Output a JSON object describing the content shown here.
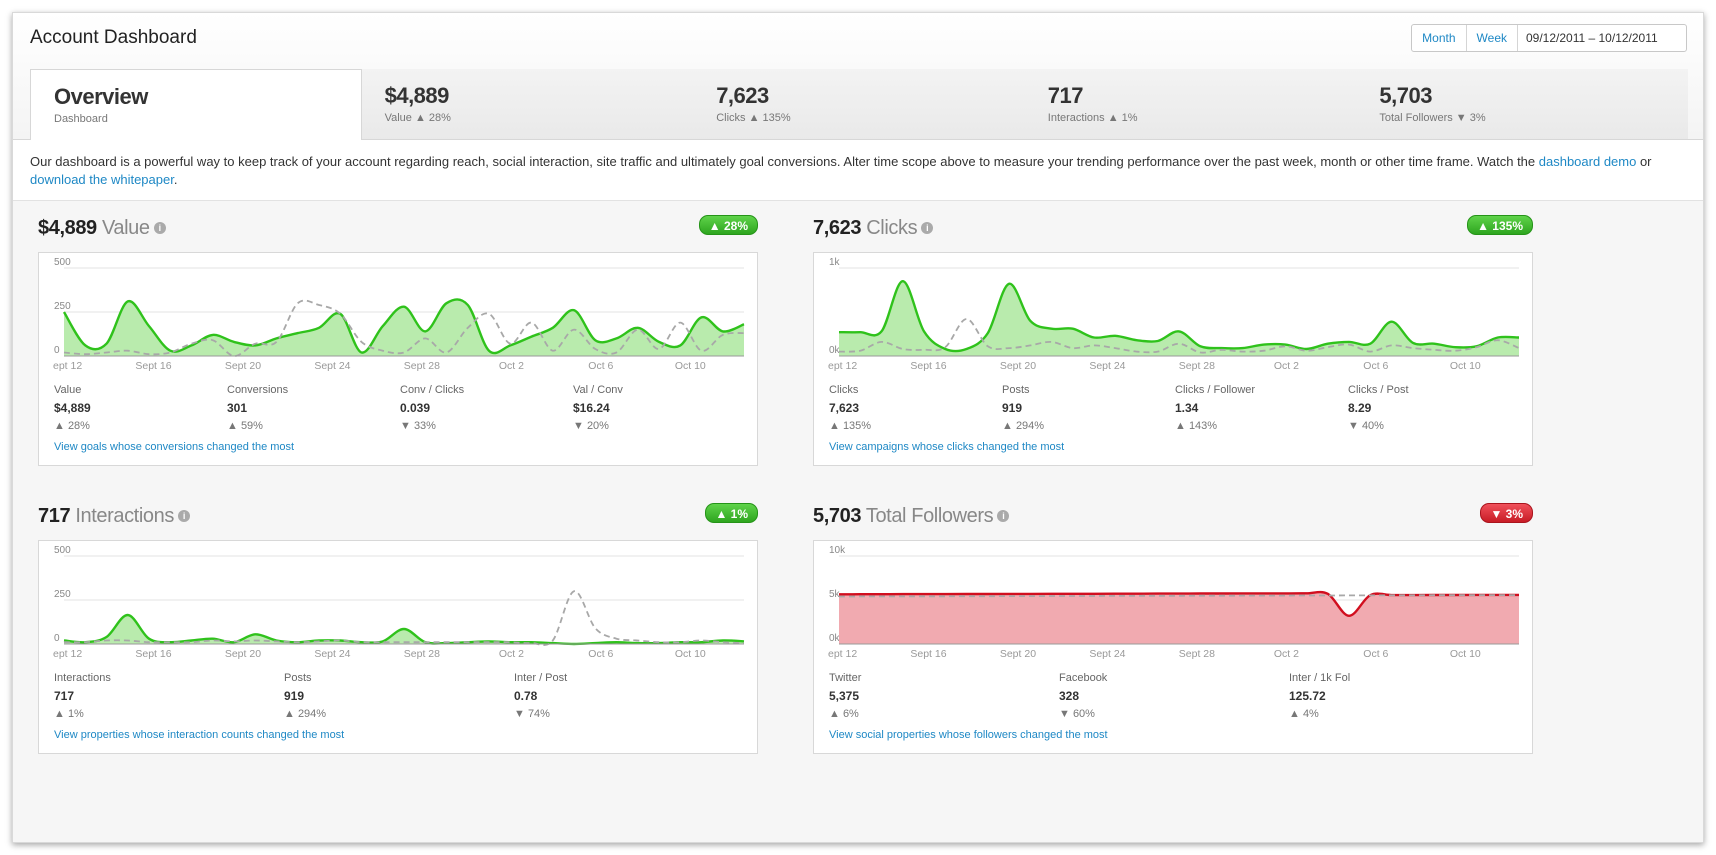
{
  "app": {
    "title": "Account Dashboard",
    "scope": {
      "month": "Month",
      "week": "Week",
      "date_range": "09/12/2011 – 10/12/2011"
    }
  },
  "tabs": [
    {
      "big": "Overview",
      "small": "Dashboard",
      "active": true
    },
    {
      "big": "$4,889",
      "small": "Value ▲ 28%"
    },
    {
      "big": "7,623",
      "small": "Clicks ▲ 135%"
    },
    {
      "big": "717",
      "small": "Interactions ▲ 1%"
    },
    {
      "big": "5,703",
      "small": "Total Followers ▼ 3%"
    }
  ],
  "intro": {
    "text": "Our dashboard is a powerful way to keep track of your account regarding reach, social interaction, site traffic and ultimately goal conversions. Alter time scope above to measure your trending performance over the past week, month or other time frame. Watch the ",
    "link1": "dashboard demo",
    "mid": " or ",
    "link2": "download the whitepaper",
    "end": "."
  },
  "colors": {
    "green_line": "#2fc21b",
    "green_fill": "#b9ebad",
    "red_line": "#d10f1f",
    "red_fill": "#f1aab0",
    "prev_dash": "#a8a8a8",
    "grid": "#e3e3e3",
    "link": "#1e88c5"
  },
  "panels": [
    {
      "value": "$4,889",
      "label": "Value",
      "badge": "▲ 28%",
      "trend": "up",
      "link": "View goals whose conversions changed the most",
      "stats": [
        {
          "label": "Value",
          "value": "$4,889",
          "change": "▲ 28%"
        },
        {
          "label": "Conversions",
          "value": "301",
          "change": "▲ 59%"
        },
        {
          "label": "Conv / Clicks",
          "value": "0.039",
          "change": "▼ 33%"
        },
        {
          "label": "Val / Conv",
          "value": "$16.24",
          "change": "▼ 20%"
        }
      ]
    },
    {
      "value": "7,623",
      "label": "Clicks",
      "badge": "▲ 135%",
      "trend": "up",
      "link": "View campaigns whose clicks changed the most",
      "stats": [
        {
          "label": "Clicks",
          "value": "7,623",
          "change": "▲ 135%"
        },
        {
          "label": "Posts",
          "value": "919",
          "change": "▲ 294%"
        },
        {
          "label": "Clicks / Follower",
          "value": "1.34",
          "change": "▲ 143%"
        },
        {
          "label": "Clicks / Post",
          "value": "8.29",
          "change": "▼ 40%"
        }
      ]
    },
    {
      "value": "717",
      "label": "Interactions",
      "badge": "▲ 1%",
      "trend": "up",
      "link": "View properties whose interaction counts changed the most",
      "stats": [
        {
          "label": "Interactions",
          "value": "717",
          "change": "▲ 1%"
        },
        {
          "label": "Posts",
          "value": "919",
          "change": "▲ 294%"
        },
        {
          "label": "Inter / Post",
          "value": "0.78",
          "change": "▼ 74%"
        }
      ]
    },
    {
      "value": "5,703",
      "label": "Total Followers",
      "badge": "▼ 3%",
      "trend": "down",
      "link": "View social properties whose followers changed the most",
      "stats": [
        {
          "label": "Twitter",
          "value": "5,375",
          "change": "▲ 6%"
        },
        {
          "label": "Facebook",
          "value": "328",
          "change": "▼ 60%"
        },
        {
          "label": "Inter / 1k Fol",
          "value": "125.72",
          "change": "▲ 4%"
        }
      ]
    }
  ],
  "chart_data": [
    {
      "type": "area",
      "title": "Value",
      "x_ticks": [
        "ept 12",
        "Sept 16",
        "Sept 20",
        "Sept 24",
        "Sept 28",
        "Oct 2",
        "Oct 6",
        "Oct 10"
      ],
      "y_ticks": [
        "500",
        "250",
        "0"
      ],
      "ylim": [
        0,
        500
      ],
      "series": [
        {
          "values": [
            250,
            60,
            70,
            310,
            170,
            30,
            60,
            120,
            80,
            60,
            100,
            130,
            160,
            240,
            20,
            170,
            280,
            140,
            300,
            290,
            30,
            60,
            110,
            160,
            260,
            90,
            100,
            160,
            80,
            60,
            220,
            140,
            180
          ]
        },
        {
          "values": [
            20,
            10,
            20,
            30,
            10,
            20,
            70,
            90,
            0,
            70,
            80,
            300,
            290,
            240,
            80,
            30,
            20,
            100,
            20,
            160,
            240,
            70,
            190,
            30,
            150,
            40,
            20,
            150,
            40,
            190,
            30,
            120,
            130
          ]
        }
      ]
    },
    {
      "type": "area",
      "title": "Clicks",
      "x_ticks": [
        "ept 12",
        "Sept 16",
        "Sept 20",
        "Sept 24",
        "Sept 28",
        "Oct 2",
        "Oct 6",
        "Oct 10"
      ],
      "y_ticks": [
        "1k",
        "0k"
      ],
      "ylim": [
        0,
        1000
      ],
      "series": [
        {
          "values": [
            270,
            270,
            280,
            850,
            280,
            80,
            80,
            260,
            820,
            400,
            310,
            310,
            210,
            230,
            180,
            170,
            280,
            110,
            90,
            90,
            130,
            130,
            80,
            140,
            160,
            140,
            390,
            150,
            140,
            100,
            110,
            210,
            210
          ]
        },
        {
          "values": [
            50,
            60,
            160,
            80,
            70,
            100,
            420,
            110,
            90,
            120,
            160,
            90,
            120,
            90,
            50,
            50,
            140,
            40,
            70,
            50,
            60,
            110,
            60,
            100,
            130,
            50,
            120,
            90,
            70,
            60,
            100,
            180,
            90
          ]
        }
      ]
    },
    {
      "type": "area",
      "title": "Interactions",
      "x_ticks": [
        "ept 12",
        "Sept 16",
        "Sept 20",
        "Sept 24",
        "Sept 28",
        "Oct 2",
        "Oct 6",
        "Oct 10"
      ],
      "y_ticks": [
        "500",
        "250",
        "0"
      ],
      "ylim": [
        0,
        500
      ],
      "series": [
        {
          "values": [
            20,
            10,
            40,
            165,
            30,
            10,
            20,
            30,
            10,
            55,
            20,
            10,
            20,
            20,
            10,
            15,
            85,
            10,
            5,
            10,
            15,
            10,
            10,
            5,
            0,
            5,
            10,
            5,
            5,
            10,
            10,
            20,
            15
          ]
        },
        {
          "values": [
            10,
            10,
            20,
            20,
            10,
            10,
            10,
            20,
            15,
            20,
            15,
            10,
            15,
            20,
            10,
            10,
            10,
            10,
            10,
            10,
            10,
            10,
            5,
            20,
            300,
            90,
            30,
            20,
            10,
            10,
            20,
            10,
            5
          ]
        }
      ]
    },
    {
      "type": "area",
      "title": "Total Followers",
      "x_ticks": [
        "ept 12",
        "Sept 16",
        "Sept 20",
        "Sept 24",
        "Sept 28",
        "Oct 2",
        "Oct 6",
        "Oct 10"
      ],
      "y_ticks": [
        "10k",
        "5k",
        "0k"
      ],
      "ylim": [
        0,
        10000
      ],
      "series": [
        {
          "values": [
            5650,
            5655,
            5660,
            5665,
            5670,
            5675,
            5680,
            5685,
            5690,
            5695,
            5700,
            5705,
            5710,
            5715,
            5720,
            5725,
            5730,
            5735,
            5740,
            5745,
            5750,
            5755,
            5760,
            5700,
            3200,
            5550,
            5555,
            5560,
            5565,
            5570,
            5575,
            5580,
            5585
          ]
        },
        {
          "values": [
            5400,
            5405,
            5410,
            5415,
            5420,
            5425,
            5430,
            5435,
            5440,
            5445,
            5450,
            5455,
            5460,
            5465,
            5470,
            5475,
            5480,
            5485,
            5490,
            5495,
            5500,
            5505,
            5510,
            5515,
            5520,
            5525,
            5530,
            5535,
            5540,
            5545,
            5550,
            5555,
            5560
          ]
        }
      ]
    }
  ]
}
